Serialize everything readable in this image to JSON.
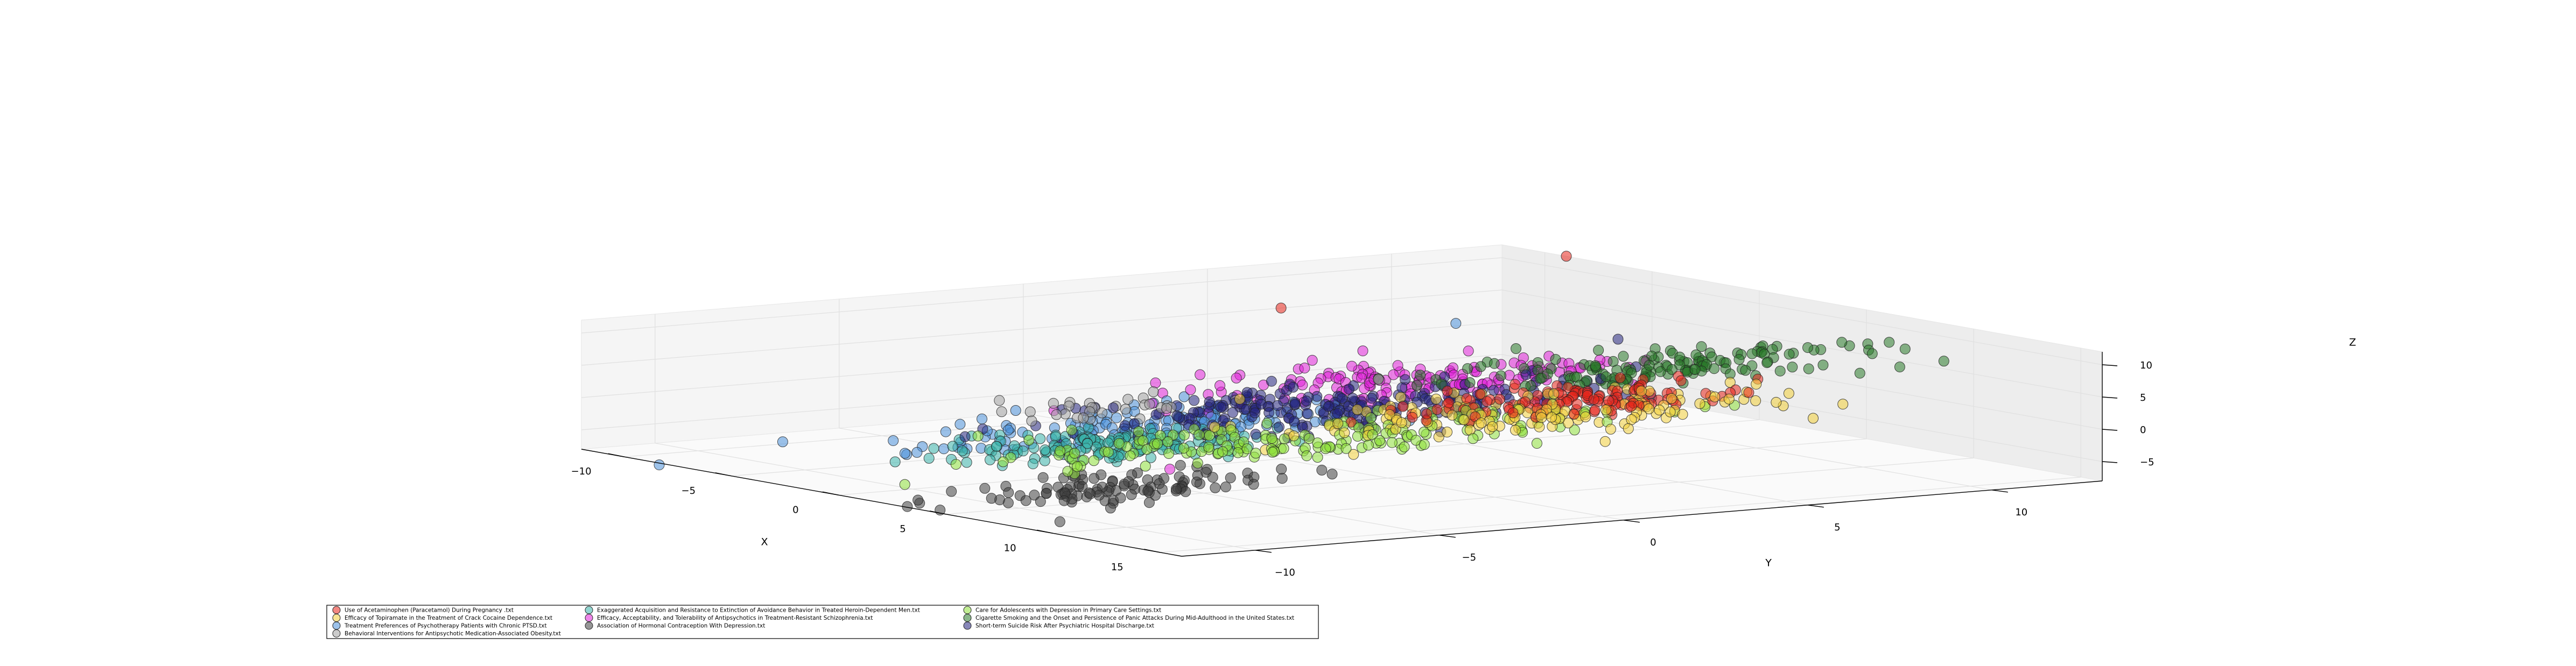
{
  "chart_data": {
    "type": "scatter",
    "projection": "3d",
    "title": "",
    "grid": true,
    "legend_placement": "bottom-center",
    "xlabel": "X",
    "ylabel": "Y",
    "zlabel": "Z",
    "x_ticks": [
      "−10",
      "−5",
      "0",
      "5",
      "10",
      "15"
    ],
    "y_ticks": [
      "−10",
      "−5",
      "0",
      "5",
      "10"
    ],
    "z_ticks": [
      "−5",
      "0",
      "5",
      "10"
    ],
    "xlim": [
      -12,
      16
    ],
    "ylim": [
      -12,
      13
    ],
    "zlim": [
      -8,
      12
    ],
    "series": [
      {
        "name": "Use of Acetaminophen (Paracetamol) During Pregnancy .txt",
        "color": "#e8261c",
        "center": [
          11,
          1.5,
          7
        ],
        "spread": [
          1.2,
          2.2,
          0.8
        ],
        "count": 120,
        "extra_points": [
          [
            -9,
            13,
            12
          ],
          [
            -12,
            7,
            5
          ]
        ]
      },
      {
        "name": "Efficacy of Topiramate in the Treatment of Crack Cocaine Dependence.txt",
        "color": "#f2cf3a",
        "center": [
          12,
          0,
          6
        ],
        "spread": [
          1.6,
          3.2,
          1.0
        ],
        "count": 150
      },
      {
        "name": "Treatment Preferences of Psychotherapy Patients with Chronic PTSD.txt",
        "color": "#4a90d9",
        "center": [
          -3.5,
          -1.5,
          -4
        ],
        "spread": [
          1.4,
          3.2,
          0.9
        ],
        "count": 150,
        "extra_points": [
          [
            -9,
            10,
            3
          ]
        ]
      },
      {
        "name": "Behavioral Interventions for Antipsychotic Medication-Associated Obesity.txt",
        "color": "#a0a0a0",
        "center": [
          1,
          -5,
          3
        ],
        "spread": [
          1.0,
          1.5,
          0.8
        ],
        "count": 30,
        "extra_points": [
          [
            8,
            -2,
            10
          ]
        ]
      },
      {
        "name": "Exaggerated Acquisition and Resistance to Extinction of Avoidance Behavior in Treated Heroin-Dependent Men.txt",
        "color": "#38b3aa",
        "center": [
          1.5,
          -5.5,
          -2.5
        ],
        "spread": [
          1.2,
          2.0,
          0.9
        ],
        "count": 150
      },
      {
        "name": "Efficacy, Acceptability, and Tolerability of Antipsychotics in Treatment-Resistant Schizophrenia.txt",
        "color": "#e020d8",
        "center": [
          -4,
          6,
          -1
        ],
        "spread": [
          1.5,
          3.0,
          0.9
        ],
        "count": 150,
        "extra_points": [
          [
            -8,
            11,
            -3
          ],
          [
            6,
            -6.5,
            -3
          ]
        ]
      },
      {
        "name": "Association of Hormonal Contraception With Depression.txt",
        "color": "#404040",
        "center": [
          11,
          -11,
          -1
        ],
        "spread": [
          1.0,
          2.2,
          0.8
        ],
        "count": 110
      },
      {
        "name": "Care for Adolescents with Depression in Primary Care Settings.txt",
        "color": "#8ee03a",
        "center": [
          12,
          -7,
          5
        ],
        "spread": [
          1.4,
          4.0,
          1.0
        ],
        "count": 170,
        "extra_points": [
          [
            6,
            -2,
            2
          ],
          [
            6.5,
            -1.8,
            2
          ],
          [
            7,
            -1.6,
            2
          ]
        ]
      },
      {
        "name": "Cigarette Smoking and the Onset and Persistence of Panic Attacks During Mid-Adulthood in the United States.txt",
        "color": "#2a7a2a",
        "center": [
          3,
          9,
          4
        ],
        "spread": [
          1.4,
          2.8,
          0.9
        ],
        "count": 150
      },
      {
        "name": "Short-term Suicide Risk After Psychiatric Hospital Discharge.txt",
        "color": "#24247e",
        "center": [
          3,
          0,
          2
        ],
        "spread": [
          1.8,
          3.4,
          0.9
        ],
        "count": 220,
        "extra_points": [
          [
            2,
            8,
            8
          ],
          [
            0,
            -6,
            -3
          ]
        ]
      }
    ]
  }
}
